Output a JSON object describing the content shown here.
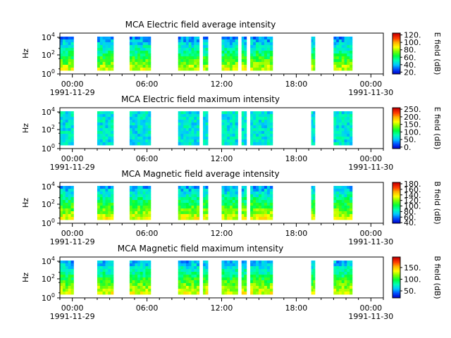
{
  "chart_data": [
    {
      "type": "heatmap",
      "title": "MCA  Electric field average intensity",
      "ylabel": "Hz",
      "y_ticks": [
        "10^0",
        "10^2",
        "10^4"
      ],
      "x_ticks": [
        "00:00",
        "06:00",
        "12:00",
        "18:00",
        "00:00"
      ],
      "x_dates": [
        "1991-11-29",
        "",
        "",
        "",
        "1991-11-30"
      ],
      "colorbar": {
        "label": "E field (dB)",
        "ticks": [
          "20.",
          "40.",
          "60.",
          "80.",
          "100.",
          "120."
        ],
        "min": 15,
        "max": 125
      },
      "level": 0.42
    },
    {
      "type": "heatmap",
      "title": "MCA  Electric field maximum intensity",
      "ylabel": "Hz",
      "y_ticks": [
        "10^0",
        "10^2",
        "10^4"
      ],
      "x_ticks": [
        "00:00",
        "06:00",
        "12:00",
        "18:00",
        "00:00"
      ],
      "x_dates": [
        "1991-11-29",
        "",
        "",
        "",
        "1991-11-30"
      ],
      "colorbar": {
        "label": "E field (dB)",
        "ticks": [
          "0.",
          "50.",
          "100.",
          "150.",
          "200.",
          "250."
        ],
        "min": -10,
        "max": 260
      },
      "level": 0.28
    },
    {
      "type": "heatmap",
      "title": "MCA  Magnetic field average intensity",
      "ylabel": "Hz",
      "y_ticks": [
        "10^0",
        "10^2",
        "10^4"
      ],
      "x_ticks": [
        "00:00",
        "06:00",
        "12:00",
        "18:00",
        "00:00"
      ],
      "x_dates": [
        "1991-11-29",
        "",
        "",
        "",
        "1991-11-30"
      ],
      "colorbar": {
        "label": "B field (dB)",
        "ticks": [
          "40.",
          "60.",
          "80.",
          "100.",
          "120.",
          "140.",
          "160.",
          "180."
        ],
        "min": 38,
        "max": 185
      },
      "level": 0.45
    },
    {
      "type": "heatmap",
      "title": "MCA  Magnetic field maximum intensity",
      "ylabel": "Hz",
      "y_ticks": [
        "10^0",
        "10^2",
        "10^4"
      ],
      "x_ticks": [
        "00:00",
        "06:00",
        "12:00",
        "18:00",
        "00:00"
      ],
      "x_dates": [
        "1991-11-29",
        "",
        "",
        "",
        "1991-11-30"
      ],
      "colorbar": {
        "label": "B field (dB)",
        "ticks": [
          "50.",
          "100.",
          "150."
        ],
        "min": 20,
        "max": 195
      },
      "level": 0.45
    }
  ],
  "data_intervals_hours": [
    [
      0.0,
      1.1
    ],
    [
      3.0,
      4.3
    ],
    [
      5.6,
      7.3
    ],
    [
      9.5,
      11.2
    ],
    [
      11.5,
      11.9
    ],
    [
      13.0,
      14.3
    ],
    [
      14.6,
      15.0
    ],
    [
      15.3,
      17.1
    ],
    [
      20.2,
      20.5
    ],
    [
      22.0,
      23.5
    ]
  ],
  "colormap": [
    "#0000c8",
    "#0050ff",
    "#00c8ff",
    "#00ffb4",
    "#00ff3c",
    "#78ff00",
    "#ffff00",
    "#ffb400",
    "#ff3c00",
    "#c80000"
  ]
}
